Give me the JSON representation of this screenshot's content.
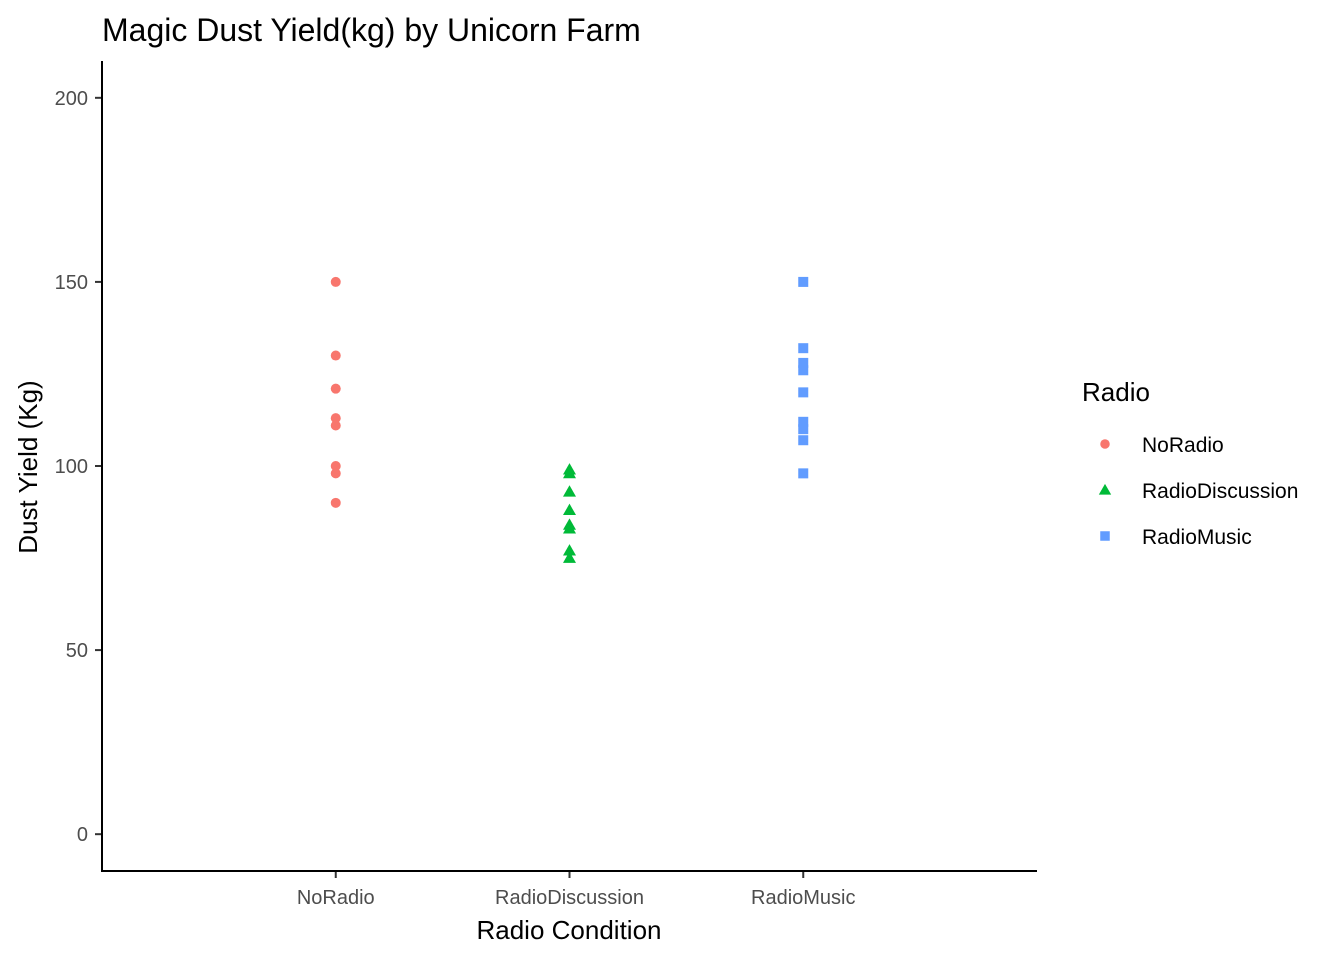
{
  "chart_data": {
    "type": "scatter",
    "title": "Magic Dust Yield(kg) by Unicorn Farm",
    "xlabel": "Radio Condition",
    "ylabel": "Dust Yield (Kg)",
    "categories": [
      "NoRadio",
      "RadioDiscussion",
      "RadioMusic"
    ],
    "ylim": [
      -10,
      210
    ],
    "yticks": [
      0,
      50,
      100,
      150,
      200
    ],
    "grid": false,
    "legend": {
      "title": "Radio",
      "position": "right"
    },
    "series": [
      {
        "name": "NoRadio",
        "category": "NoRadio",
        "shape": "circle",
        "color": "#F8766D",
        "values": [
          150,
          130,
          121,
          113,
          111,
          100,
          98,
          90
        ]
      },
      {
        "name": "RadioDiscussion",
        "category": "RadioDiscussion",
        "shape": "triangle",
        "color": "#00BA38",
        "values": [
          99,
          98,
          93,
          88,
          84,
          83,
          77,
          75
        ]
      },
      {
        "name": "RadioMusic",
        "category": "RadioMusic",
        "shape": "square",
        "color": "#619CFF",
        "values": [
          150,
          132,
          128,
          126,
          120,
          112,
          110,
          107,
          98
        ]
      }
    ]
  }
}
